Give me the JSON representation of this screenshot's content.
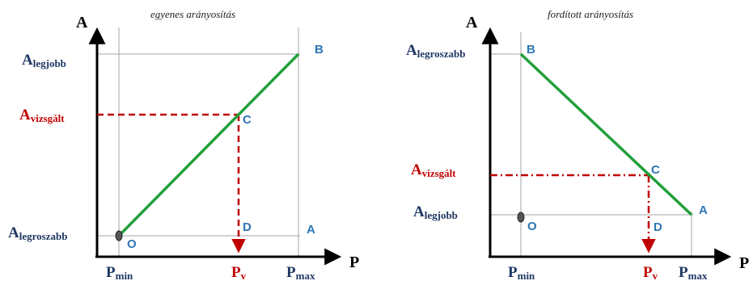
{
  "colors": {
    "line": "#22a03c",
    "dashed": "#c00000",
    "axis": "#000000",
    "grid": "#a6a6a6",
    "point_label": "#2e75b6",
    "navy_label": "#1f3864",
    "red_label": "#c00000"
  },
  "left_diagram": {
    "title": "egyenes arányosítás",
    "y_axis_letter": "A",
    "x_axis_letter": "P",
    "y_labels": {
      "top": {
        "main": "A",
        "sub": "legjobb"
      },
      "mid": {
        "main": "A",
        "sub": "vizsgált"
      },
      "bottom": {
        "main": "A",
        "sub": "legroszabb"
      }
    },
    "x_labels": {
      "min": {
        "main": "P",
        "sub": "min"
      },
      "v": {
        "main": "P",
        "sub": "v"
      },
      "max": {
        "main": "P",
        "sub": "max"
      }
    },
    "points": {
      "O": "O",
      "B": "B",
      "C": "C",
      "D": "D",
      "A": "A"
    }
  },
  "right_diagram": {
    "title": "fordított arányosítás",
    "y_axis_letter": "A",
    "x_axis_letter": "P",
    "y_labels": {
      "top": {
        "main": "A",
        "sub": "legroszabb"
      },
      "mid": {
        "main": "A",
        "sub": "vizsgált"
      },
      "bottom": {
        "main": "A",
        "sub": "legjobb"
      }
    },
    "x_labels": {
      "min": {
        "main": "P",
        "sub": "min"
      },
      "v": {
        "main": "P",
        "sub": "v"
      },
      "max": {
        "main": "P",
        "sub": "max"
      }
    },
    "points": {
      "O": "O",
      "B": "B",
      "C": "C",
      "D": "D",
      "A": "A"
    }
  }
}
